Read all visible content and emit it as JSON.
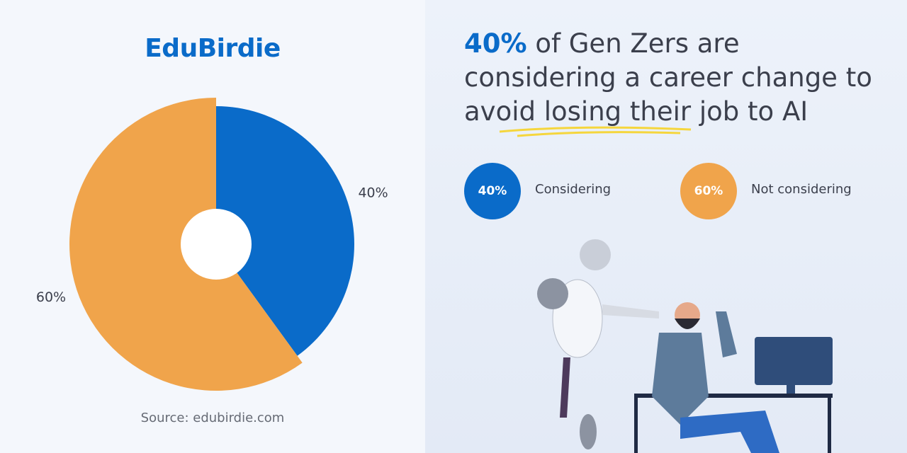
{
  "brand": "EduBirdie",
  "chart_data": {
    "type": "pie",
    "title_lead": "40%",
    "title": "of Gen Zers are considering a career change to avoid losing their job to AI",
    "categories": [
      "Considering",
      "Not considering"
    ],
    "values": [
      40,
      60
    ],
    "value_labels": [
      "40%",
      "60%"
    ],
    "colors": [
      "#0a6bc9",
      "#f0a44b"
    ],
    "source": "Source: edubirdie.com"
  }
}
